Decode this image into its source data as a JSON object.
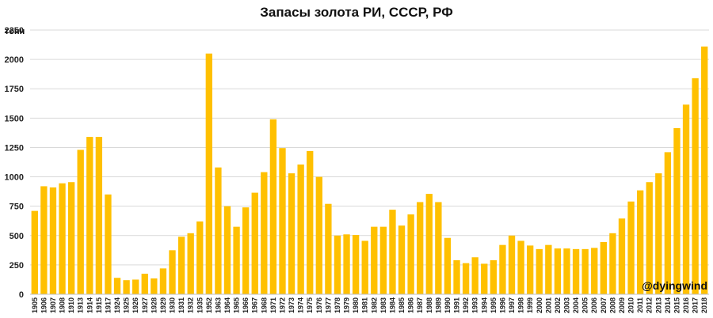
{
  "chart_data": {
    "type": "bar",
    "title": "Запасы золота РИ, СССР, РФ",
    "ylabel": "тонн",
    "xlabel": "",
    "ylim": [
      0,
      2250
    ],
    "yticks": [
      0,
      250,
      500,
      750,
      1000,
      1250,
      1500,
      1750,
      2000,
      2250
    ],
    "grid": "horizontal",
    "bar_color": "#FFC000",
    "watermark": "@dyingwind",
    "categories": [
      "1905",
      "1906",
      "1907",
      "1908",
      "1910",
      "1913",
      "1914",
      "1915",
      "1917",
      "1924",
      "1925",
      "1926",
      "1927",
      "1928",
      "1929",
      "1930",
      "1931",
      "1932",
      "1935",
      "1952",
      "1963",
      "1964",
      "1965",
      "1966",
      "1967",
      "1968",
      "1971",
      "1972",
      "1973",
      "1974",
      "1975",
      "1976",
      "1977",
      "1978",
      "1979",
      "1980",
      "1981",
      "1982",
      "1983",
      "1984",
      "1985",
      "1986",
      "1987",
      "1988",
      "1989",
      "1990",
      "1991",
      "1992",
      "1993",
      "1994",
      "1995",
      "1996",
      "1997",
      "1998",
      "1999",
      "2000",
      "2001",
      "2002",
      "2003",
      "2004",
      "2005",
      "2006",
      "2007",
      "2008",
      "2009",
      "2010",
      "2011",
      "2012",
      "2013",
      "2014",
      "2015",
      "2016",
      "2017",
      "2018"
    ],
    "values": [
      710,
      920,
      910,
      945,
      955,
      1230,
      1340,
      1340,
      850,
      140,
      120,
      125,
      175,
      135,
      220,
      375,
      490,
      520,
      620,
      2050,
      1080,
      750,
      575,
      740,
      865,
      1040,
      1490,
      1245,
      1030,
      1105,
      1220,
      1000,
      770,
      500,
      510,
      505,
      455,
      575,
      575,
      720,
      585,
      680,
      785,
      855,
      785,
      480,
      290,
      265,
      315,
      260,
      290,
      420,
      500,
      455,
      415,
      385,
      420,
      390,
      390,
      385,
      385,
      395,
      445,
      520,
      645,
      790,
      885,
      955,
      1030,
      1210,
      1415,
      1615,
      1840,
      2110
    ]
  }
}
